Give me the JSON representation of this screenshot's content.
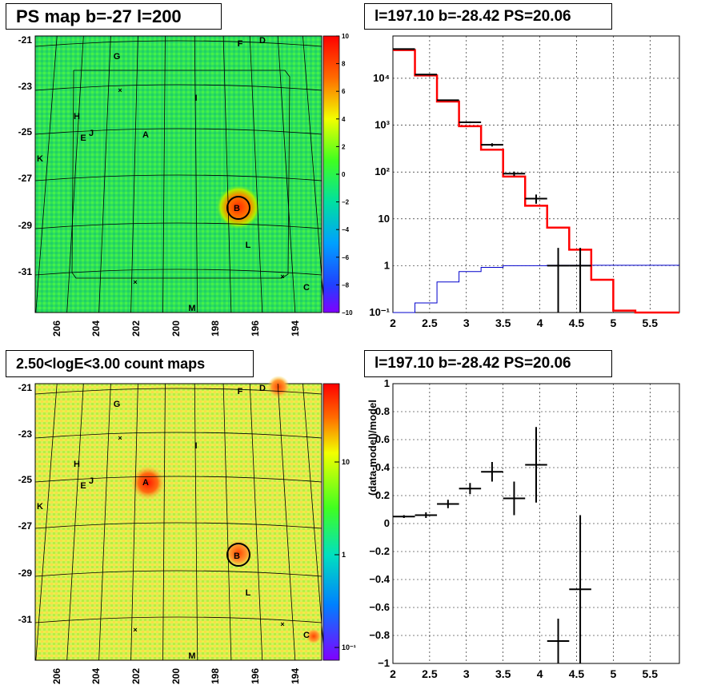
{
  "panels": {
    "map_top": {
      "title": "PS map b=-27 l=200",
      "y_ticks": [
        "-21",
        "-23",
        "-25",
        "-27",
        "-29",
        "-31"
      ],
      "x_ticks": [
        "206",
        "204",
        "202",
        "200",
        "198",
        "196",
        "194"
      ],
      "colorbar_ticks": [
        "10",
        "8",
        "6",
        "4",
        "2",
        "0",
        "−2",
        "−4",
        "−6",
        "−8",
        "−10"
      ],
      "sources": [
        {
          "label": "G"
        },
        {
          "label": "F"
        },
        {
          "label": "D"
        },
        {
          "label": "I"
        },
        {
          "label": "H"
        },
        {
          "label": "E"
        },
        {
          "label": "J"
        },
        {
          "label": "A"
        },
        {
          "label": "K"
        },
        {
          "label": "B"
        },
        {
          "label": "L"
        },
        {
          "label": "C"
        },
        {
          "label": "M"
        }
      ]
    },
    "map_bottom": {
      "title": "2.50<logE<3.00 count maps",
      "y_ticks": [
        "-21",
        "-23",
        "-25",
        "-27",
        "-29",
        "-31"
      ],
      "x_ticks": [
        "206",
        "204",
        "202",
        "200",
        "198",
        "196",
        "194"
      ],
      "colorbar_ticks": [
        "10",
        "1",
        "10⁻¹"
      ]
    },
    "spectrum": {
      "title": "l=197.10 b=-28.42 PS=20.06"
    },
    "residual": {
      "title": "l=197.10 b=-28.42 PS=20.06",
      "ylabel": "(data-model)/model"
    }
  },
  "colors": {
    "data": "#000000",
    "model": "#ff0000",
    "background": "#0000cc",
    "grid": "#000000"
  },
  "chart_data": [
    {
      "type": "line",
      "panel": "spectrum",
      "y_scale": "log",
      "xlim": [
        2,
        5.9
      ],
      "ylim": [
        0.1,
        80000
      ],
      "x_ticks": [
        "2",
        "2.5",
        "3",
        "3.5",
        "4",
        "4.5",
        "5",
        "5.5"
      ],
      "y_ticks": [
        "10⁻¹",
        "1",
        "10",
        "10²",
        "10³",
        "10⁴"
      ],
      "bin_edges": [
        2.0,
        2.3,
        2.6,
        2.9,
        3.2,
        3.5,
        3.8,
        4.1,
        4.4,
        4.7,
        5.0,
        5.3,
        5.9
      ],
      "series": [
        {
          "role": "model",
          "values": [
            40000,
            11500,
            3200,
            950,
            300,
            80,
            19,
            6.5,
            2.2,
            0.5,
            0.11,
            0.1
          ]
        },
        {
          "role": "background",
          "values": [
            0.1,
            0.16,
            0.45,
            0.75,
            0.92,
            1.0,
            1.0,
            1.02,
            1.02,
            1.02,
            1.02,
            1.02
          ]
        },
        {
          "role": "data",
          "x": [
            2.15,
            2.45,
            2.75,
            3.05,
            3.35,
            3.65,
            3.95,
            4.25,
            4.55
          ],
          "y": [
            42000,
            12000,
            3400,
            1150,
            380,
            92,
            27,
            1.0,
            1.0
          ],
          "y_err_low": [
            41000,
            11800,
            3300,
            1100,
            350,
            82,
            21,
            0.1,
            0.1
          ],
          "y_err_high": [
            43000,
            12300,
            3500,
            1200,
            410,
            102,
            33,
            2.4,
            2.4
          ]
        }
      ]
    },
    {
      "type": "scatter",
      "panel": "residual",
      "xlim": [
        2,
        5.9
      ],
      "ylim": [
        -1,
        1
      ],
      "x_ticks": [
        "2",
        "2.5",
        "3",
        "3.5",
        "4",
        "4.5",
        "5",
        "5.5"
      ],
      "y_ticks": [
        "1",
        "0.8",
        "0.6",
        "0.4",
        "0.2",
        "0",
        "−0.2",
        "−0.4",
        "−0.6",
        "−0.8",
        "−1"
      ],
      "series": [
        {
          "role": "data",
          "x": [
            2.15,
            2.45,
            2.75,
            3.05,
            3.35,
            3.65,
            3.95,
            4.25,
            4.55
          ],
          "x_err": [
            0.15,
            0.15,
            0.15,
            0.15,
            0.15,
            0.15,
            0.15,
            0.15,
            0.15
          ],
          "y": [
            0.05,
            0.06,
            0.14,
            0.25,
            0.37,
            0.18,
            0.42,
            -0.84,
            -0.47
          ],
          "y_err": [
            0.01,
            0.02,
            0.03,
            0.04,
            0.07,
            0.12,
            0.27,
            0.16,
            0.53
          ]
        }
      ]
    }
  ]
}
